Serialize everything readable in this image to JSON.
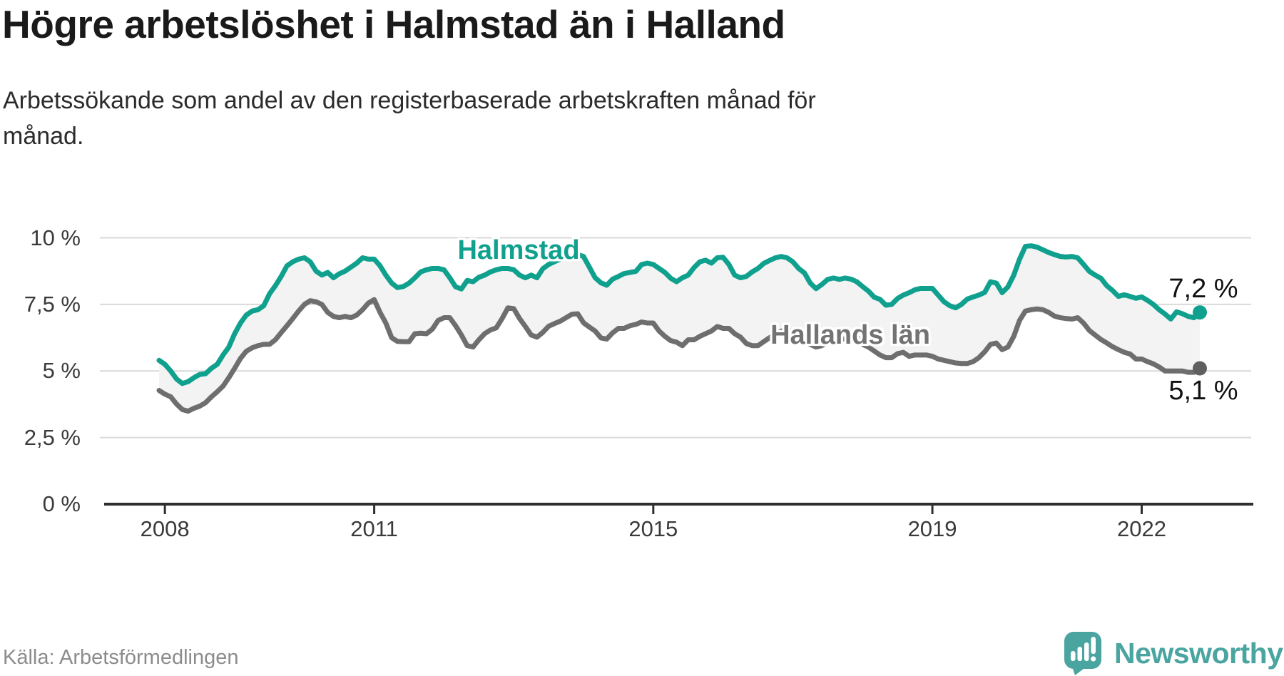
{
  "header": {
    "title": "Högre arbetslöshet i Halmstad än i Halland",
    "subtitle_line1": "Arbetssökande som andel av den registerbaserade arbetskraften månad för",
    "subtitle_line2": "månad."
  },
  "source": {
    "label": "Källa: Arbetsförmedlingen"
  },
  "logo": {
    "text": "Newsworthy",
    "icon": "speech-bubble-bar-chart-icon",
    "color": "#4aa5a0"
  },
  "colors": {
    "halmstad_line": "#10a08e",
    "halland_line": "#6e6e6e",
    "halland_dot": "#5f5f5f",
    "band_fill": "#f3f3f3",
    "gridline": "#d9d9d9",
    "axis": "#2f2f2f",
    "end_label_text": "#111111"
  },
  "chart_data": {
    "type": "line",
    "unit": "%",
    "frequency": "monthly",
    "x_start": "2007-12",
    "x_end": "2022-11",
    "grid": "horizontal",
    "y_axis": {
      "range": [
        0,
        10.5
      ],
      "ticks": [
        {
          "value": 0,
          "label": "0 %"
        },
        {
          "value": 2.5,
          "label": "2,5 %"
        },
        {
          "value": 5,
          "label": "5 %"
        },
        {
          "value": 7.5,
          "label": "7,5 %"
        },
        {
          "value": 10,
          "label": "10 %"
        }
      ]
    },
    "x_axis": {
      "ticks": [
        {
          "month_index": 1,
          "label": "2008"
        },
        {
          "month_index": 37,
          "label": "2011"
        },
        {
          "month_index": 85,
          "label": "2015"
        },
        {
          "month_index": 133,
          "label": "2019"
        },
        {
          "month_index": 169,
          "label": "2022"
        }
      ]
    },
    "end_value_labels": {
      "halmstad": "7,2 %",
      "hallands_lan": "5,1 %"
    },
    "series": [
      {
        "name": "Halmstad",
        "color": "#10a08e",
        "values": [
          5.4,
          5.25,
          5.0,
          4.7,
          4.53,
          4.6,
          4.75,
          4.87,
          4.9,
          5.1,
          5.25,
          5.6,
          5.9,
          6.4,
          6.8,
          7.1,
          7.25,
          7.3,
          7.45,
          7.9,
          8.2,
          8.55,
          8.95,
          9.1,
          9.2,
          9.25,
          9.1,
          8.75,
          8.6,
          8.7,
          8.5,
          8.65,
          8.75,
          8.9,
          9.05,
          9.25,
          9.2,
          9.2,
          8.95,
          8.6,
          8.3,
          8.13,
          8.17,
          8.3,
          8.5,
          8.72,
          8.8,
          8.85,
          8.85,
          8.8,
          8.5,
          8.16,
          8.08,
          8.4,
          8.35,
          8.52,
          8.6,
          8.72,
          8.8,
          8.85,
          8.85,
          8.8,
          8.6,
          8.5,
          8.6,
          8.5,
          8.84,
          9.0,
          9.1,
          9.2,
          9.3,
          9.35,
          9.37,
          9.3,
          8.9,
          8.5,
          8.31,
          8.22,
          8.45,
          8.55,
          8.66,
          8.7,
          8.74,
          9.0,
          9.05,
          9.0,
          8.85,
          8.7,
          8.48,
          8.35,
          8.5,
          8.6,
          8.88,
          9.1,
          9.16,
          9.05,
          9.25,
          9.27,
          9.0,
          8.6,
          8.5,
          8.55,
          8.72,
          8.85,
          9.04,
          9.15,
          9.25,
          9.3,
          9.25,
          9.1,
          8.85,
          8.68,
          8.3,
          8.09,
          8.25,
          8.44,
          8.49,
          8.44,
          8.49,
          8.45,
          8.35,
          8.17,
          8.0,
          7.77,
          7.69,
          7.47,
          7.5,
          7.72,
          7.85,
          7.94,
          8.05,
          8.1,
          8.1,
          8.1,
          7.85,
          7.6,
          7.45,
          7.37,
          7.5,
          7.7,
          7.78,
          7.85,
          7.95,
          8.35,
          8.3,
          7.94,
          8.16,
          8.6,
          9.2,
          9.68,
          9.7,
          9.65,
          9.55,
          9.45,
          9.37,
          9.3,
          9.28,
          9.3,
          9.25,
          9.0,
          8.74,
          8.6,
          8.48,
          8.2,
          8.02,
          7.8,
          7.86,
          7.8,
          7.73,
          7.78,
          7.65,
          7.5,
          7.3,
          7.14,
          6.95,
          7.22,
          7.15,
          7.05,
          7.0,
          7.2
        ]
      },
      {
        "name": "Hallands län",
        "color": "#6e6e6e",
        "values": [
          4.27,
          4.13,
          4.03,
          3.76,
          3.55,
          3.49,
          3.6,
          3.68,
          3.81,
          4.03,
          4.22,
          4.43,
          4.75,
          5.1,
          5.47,
          5.74,
          5.87,
          5.95,
          6.0,
          6.0,
          6.17,
          6.44,
          6.7,
          6.97,
          7.25,
          7.5,
          7.64,
          7.6,
          7.5,
          7.2,
          7.05,
          7.0,
          7.05,
          7.0,
          7.1,
          7.3,
          7.55,
          7.68,
          7.2,
          6.8,
          6.25,
          6.11,
          6.1,
          6.1,
          6.4,
          6.42,
          6.4,
          6.57,
          6.9,
          7.0,
          7.0,
          6.7,
          6.35,
          5.95,
          5.9,
          6.17,
          6.4,
          6.54,
          6.62,
          6.97,
          7.37,
          7.34,
          6.97,
          6.67,
          6.35,
          6.27,
          6.45,
          6.68,
          6.78,
          6.87,
          7.0,
          7.13,
          7.15,
          6.81,
          6.65,
          6.5,
          6.24,
          6.2,
          6.43,
          6.6,
          6.6,
          6.7,
          6.75,
          6.84,
          6.8,
          6.8,
          6.5,
          6.3,
          6.14,
          6.08,
          5.95,
          6.17,
          6.17,
          6.3,
          6.4,
          6.5,
          6.67,
          6.6,
          6.6,
          6.4,
          6.27,
          6.03,
          5.95,
          5.95,
          6.1,
          6.25,
          6.35,
          6.5,
          6.55,
          6.5,
          6.45,
          6.25,
          6.0,
          5.9,
          5.95,
          6.1,
          6.2,
          6.2,
          6.2,
          6.25,
          6.3,
          6.0,
          5.9,
          5.75,
          5.6,
          5.5,
          5.5,
          5.65,
          5.7,
          5.55,
          5.6,
          5.6,
          5.6,
          5.55,
          5.45,
          5.4,
          5.35,
          5.3,
          5.28,
          5.28,
          5.35,
          5.5,
          5.72,
          6.0,
          6.05,
          5.8,
          5.9,
          6.3,
          6.9,
          7.25,
          7.3,
          7.33,
          7.3,
          7.2,
          7.06,
          7.0,
          6.97,
          6.95,
          7.0,
          6.8,
          6.52,
          6.35,
          6.18,
          6.05,
          5.91,
          5.8,
          5.7,
          5.64,
          5.45,
          5.45,
          5.35,
          5.27,
          5.15,
          5.0,
          5.0,
          5.0,
          5.0,
          4.95,
          4.95,
          5.1
        ]
      }
    ]
  }
}
